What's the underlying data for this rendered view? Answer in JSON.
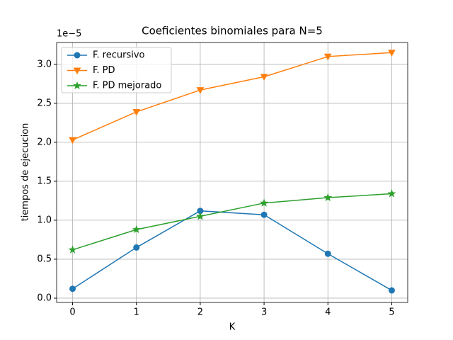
{
  "chart_data": {
    "type": "line",
    "title": "Coeficientes binomiales para N=5",
    "x_label": "K",
    "y_label": "tiempos de ejecucion",
    "y_offset_label": "1e−5",
    "x": [
      0,
      1,
      2,
      3,
      4,
      5
    ],
    "series": [
      {
        "name": "F. recursivo",
        "color": "#1f77b4",
        "marker": "circle",
        "values": [
          0.12,
          0.65,
          1.12,
          1.07,
          0.57,
          0.1
        ]
      },
      {
        "name": "F. PD",
        "color": "#ff7f0e",
        "marker": "triangle-down",
        "values": [
          2.03,
          2.39,
          2.67,
          2.84,
          3.1,
          3.15
        ]
      },
      {
        "name": "F. PD mejorado",
        "color": "#2ca02c",
        "marker": "star",
        "values": [
          0.62,
          0.88,
          1.05,
          1.22,
          1.29,
          1.34
        ]
      }
    ],
    "xlim": [
      -0.25,
      5.25
    ],
    "xticks": [
      0,
      1,
      2,
      3,
      4,
      5
    ],
    "ylim": [
      -0.055,
      3.28
    ],
    "yticks": [
      {
        "value": 0,
        "label": "0.0"
      },
      {
        "value": 0.5,
        "label": "0.5"
      },
      {
        "value": 1,
        "label": "1.0"
      },
      {
        "value": 1.5,
        "label": "1.5"
      },
      {
        "value": 2,
        "label": "2.0"
      },
      {
        "value": 2.5,
        "label": "2.5"
      },
      {
        "value": 3,
        "label": "3.0"
      }
    ],
    "grid": true,
    "legend": "upper-left"
  }
}
